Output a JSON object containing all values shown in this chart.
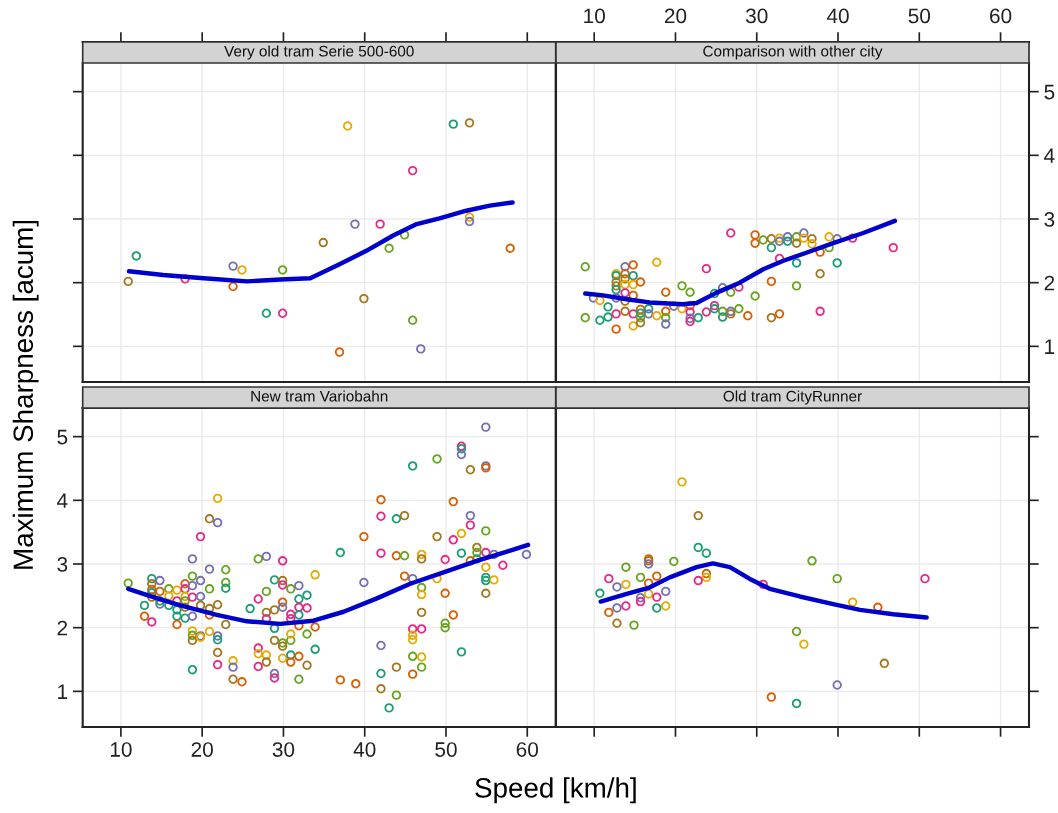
{
  "chart_data": [
    {
      "type": "scatter",
      "title": "Very old tram Serie 500-600",
      "xlabel": "Speed [km/h]",
      "ylabel": "Maximum Sharpness [acum]",
      "xlim": [
        5.3,
        63.5
      ],
      "ylim": [
        0.44,
        5.45
      ],
      "xticks": [
        10,
        20,
        30,
        40,
        50,
        60
      ],
      "yticks": [
        1,
        2,
        3,
        4,
        5
      ],
      "grid": true,
      "tick_labels": false,
      "series": [
        {
          "marker": "circle",
          "x": [
            11.9,
            10.9,
            17.9,
            23.8,
            24.9,
            23.8,
            29.9,
            27.9,
            29.9,
            34.9,
            37.9,
            36.9,
            38.8,
            39.9,
            41.9,
            43.0,
            44.9,
            45.9,
            45.9,
            46.9,
            50.9,
            52.9,
            52.9,
            52.9,
            57.9
          ],
          "values": [
            2.42,
            2.02,
            2.06,
            2.26,
            2.2,
            1.94,
            2.2,
            1.52,
            1.52,
            2.63,
            4.46,
            0.91,
            2.92,
            1.75,
            2.92,
            2.54,
            2.75,
            3.76,
            1.41,
            0.96,
            4.49,
            4.51,
            3.03,
            2.96,
            2.54
          ],
          "colors": [
            "#1b9e77",
            "#a6761d",
            "#e7298a",
            "#7570b3",
            "#e6ab02",
            "#d95f02",
            "#66a61e",
            "#1b9e77",
            "#e7298a",
            "#a6761d",
            "#e6ab02",
            "#d95f02",
            "#7570b3",
            "#a6761d",
            "#e7298a",
            "#66a61e",
            "#66a61e",
            "#e7298a",
            "#66a61e",
            "#7570b3",
            "#1b9e77",
            "#a6761d",
            "#e6ab02",
            "#7570b3",
            "#d95f02"
          ]
        },
        {
          "type": "line",
          "color": "#0000cc",
          "x": [
            11,
            15.2,
            20.2,
            25.5,
            29.6,
            33.3,
            36.9,
            40.2,
            43.5,
            46.4,
            49.2,
            52.5,
            55.4,
            58.2
          ],
          "values": [
            2.18,
            2.12,
            2.07,
            2.02,
            2.05,
            2.07,
            2.29,
            2.5,
            2.74,
            2.92,
            3.01,
            3.13,
            3.21,
            3.26
          ]
        }
      ]
    },
    {
      "type": "scatter",
      "title": "Comparison with other city",
      "xlim": [
        5.3,
        63.5
      ],
      "ylim": [
        0.44,
        5.45
      ],
      "xticks": [
        10,
        20,
        30,
        40,
        50,
        60
      ],
      "yticks": [
        1,
        2,
        3,
        4,
        5
      ],
      "grid": true,
      "series": [
        {
          "marker": "circle",
          "x": [
            8.9,
            8.9,
            9.9,
            10.7,
            10.7,
            11.7,
            11.7,
            12.7,
            12.7,
            12.7,
            12.7,
            12.7,
            12.7,
            12.7,
            12.7,
            13.8,
            13.8,
            13.8,
            13.8,
            13.8,
            13.8,
            13.8,
            14.8,
            14.8,
            14.8,
            14.8,
            14.8,
            14.8,
            15.7,
            15.7,
            15.7,
            15.7,
            15.7,
            16.7,
            16.7,
            17.7,
            17.7,
            18.8,
            18.8,
            18.8,
            18.8,
            19.8,
            20.8,
            20.8,
            21.8,
            21.8,
            21.8,
            21.8,
            21.8,
            22.8,
            23.8,
            23.8,
            24.8,
            24.8,
            24.8,
            25.8,
            25.8,
            25.8,
            26.8,
            26.8,
            26.8,
            26.8,
            27.8,
            27.8,
            28.9,
            29.8,
            29.8,
            29.8,
            30.8,
            31.8,
            31.8,
            31.8,
            31.8,
            32.8,
            32.8,
            32.8,
            32.8,
            33.8,
            33.8,
            34.9,
            34.9,
            34.9,
            34.9,
            35.8,
            35.8,
            36.8,
            36.8,
            37.8,
            37.8,
            37.8,
            38.9,
            38.9,
            39.9,
            39.9,
            41.8,
            46.8
          ],
          "values": [
            2.25,
            1.45,
            1.76,
            1.72,
            1.41,
            1.62,
            1.46,
            1.51,
            1.27,
            2.14,
            2.11,
            2.01,
            1.95,
            1.89,
            1.76,
            2.25,
            2.14,
            2.06,
            1.97,
            1.84,
            1.71,
            1.55,
            2.28,
            2.11,
            1.97,
            1.8,
            1.51,
            1.32,
            2.01,
            1.58,
            1.52,
            1.45,
            1.37,
            1.59,
            1.51,
            1.48,
            2.32,
            1.85,
            1.55,
            1.45,
            1.35,
            1.63,
            1.59,
            1.95,
            1.85,
            1.64,
            1.54,
            1.44,
            1.39,
            1.45,
            2.22,
            1.54,
            1.83,
            1.64,
            1.59,
            1.92,
            1.55,
            1.46,
            2.78,
            1.85,
            1.55,
            1.51,
            1.93,
            1.59,
            1.48,
            2.75,
            2.62,
            1.79,
            2.67,
            2.69,
            2.55,
            2.02,
            1.45,
            2.7,
            2.65,
            2.38,
            1.51,
            2.72,
            2.65,
            2.72,
            2.62,
            2.31,
            1.95,
            2.78,
            2.7,
            2.69,
            2.61,
            2.48,
            2.14,
            1.55,
            2.72,
            2.55,
            2.69,
            2.31,
            2.7,
            2.55
          ],
          "colors": [
            "#66a61e",
            "#66a61e",
            "#7570b3",
            "#e6ab02",
            "#1b9e77",
            "#1b9e77",
            "#1b9e77",
            "#e7298a",
            "#d95f02",
            "#e6ab02",
            "#1b9e77",
            "#a6761d",
            "#a6761d",
            "#1b9e77",
            "#7570b3",
            "#7570b3",
            "#d95f02",
            "#a6761d",
            "#e6ab02",
            "#e7298a",
            "#a6761d",
            "#a6761d",
            "#d95f02",
            "#1b9e77",
            "#e6ab02",
            "#d95f02",
            "#e7298a",
            "#e6ab02",
            "#d95f02",
            "#d95f02",
            "#1b9e77",
            "#66a61e",
            "#a6761d",
            "#1b9e77",
            "#7570b3",
            "#e6ab02",
            "#e6ab02",
            "#d95f02",
            "#d95f02",
            "#66a61e",
            "#7570b3",
            "#7570b3",
            "#e6ab02",
            "#66a61e",
            "#66a61e",
            "#d95f02",
            "#e7298a",
            "#7570b3",
            "#e7298a",
            "#1b9e77",
            "#e7298a",
            "#e7298a",
            "#1b9e77",
            "#e7298a",
            "#1b9e77",
            "#7570b3",
            "#66a61e",
            "#1b9e77",
            "#e7298a",
            "#66a61e",
            "#7570b3",
            "#a6761d",
            "#e7298a",
            "#66a61e",
            "#d95f02",
            "#d95f02",
            "#d95f02",
            "#66a61e",
            "#66a61e",
            "#a6761d",
            "#1b9e77",
            "#d95f02",
            "#a6761d",
            "#e6ab02",
            "#7570b3",
            "#e7298a",
            "#d95f02",
            "#7570b3",
            "#1b9e77",
            "#66a61e",
            "#a6761d",
            "#1b9e77",
            "#66a61e",
            "#7570b3",
            "#e6ab02",
            "#a6761d",
            "#e6ab02",
            "#d95f02",
            "#a6761d",
            "#e7298a",
            "#e6ab02",
            "#66a61e",
            "#7570b3",
            "#1b9e77",
            "#e7298a",
            "#e7298a"
          ]
        },
        {
          "type": "line",
          "color": "#0000cc",
          "x": [
            8.9,
            11.1,
            14.0,
            16.8,
            20.9,
            22.6,
            25.0,
            27.9,
            30.8,
            33.2,
            36.1,
            39.4,
            43.1,
            47.0
          ],
          "values": [
            1.83,
            1.8,
            1.74,
            1.69,
            1.66,
            1.68,
            1.84,
            2.0,
            2.21,
            2.34,
            2.47,
            2.62,
            2.78,
            2.97
          ]
        }
      ]
    },
    {
      "type": "scatter",
      "title": "New tram Variobahn",
      "xlim": [
        5.3,
        63.5
      ],
      "ylim": [
        0.44,
        5.45
      ],
      "xticks": [
        10,
        20,
        30,
        40,
        50,
        60
      ],
      "yticks": [
        1,
        2,
        3,
        4,
        5
      ],
      "grid": true,
      "series": [
        {
          "marker": "circle",
          "x": [
            10.9,
            12.9,
            12.9,
            13.8,
            13.8,
            13.8,
            13.8,
            13.8,
            13.8,
            14.8,
            14.8,
            14.8,
            14.8,
            15.9,
            15.9,
            15.9,
            16.9,
            16.9,
            16.9,
            16.9,
            16.9,
            17.9,
            17.9,
            17.9,
            17.9,
            17.9,
            17.9,
            18.8,
            18.8,
            18.8,
            18.8,
            18.8,
            18.8,
            18.8,
            18.8,
            18.8,
            19.8,
            19.8,
            19.8,
            19.8,
            19.8,
            19.8,
            20.9,
            20.9,
            20.9,
            20.9,
            20.9,
            20.9,
            21.9,
            21.9,
            21.9,
            21.9,
            21.9,
            21.9,
            21.9,
            22.9,
            22.9,
            22.9,
            22.9,
            23.8,
            23.8,
            23.8,
            24.9,
            25.9,
            26.9,
            27.9,
            26.9,
            26.9,
            26.9,
            26.9,
            27.9,
            27.9,
            27.9,
            27.9,
            27.9,
            28.9,
            28.9,
            28.9,
            28.9,
            28.9,
            29.9,
            29.9,
            29.9,
            29.9,
            29.9,
            28.9,
            29.9,
            29.9,
            29.9,
            30.9,
            30.9,
            30.9,
            30.9,
            30.9,
            30.9,
            30.9,
            31.9,
            31.9,
            31.9,
            31.9,
            31.9,
            31.9,
            31.9,
            32.9,
            32.9,
            32.9,
            32.9,
            33.9,
            33.9,
            33.9,
            37.0,
            37.0,
            38.9,
            39.9,
            39.9,
            42.0,
            42.0,
            42.0,
            42.0,
            42.0,
            42.0,
            43.0,
            43.9,
            43.9,
            43.9,
            43.9,
            44.9,
            44.9,
            44.9,
            45.9,
            45.9,
            45.9,
            45.9,
            45.9,
            45.9,
            45.9,
            47.0,
            47.0,
            47.0,
            47.0,
            47.0,
            47.0,
            47.0,
            47.0,
            48.9,
            48.9,
            48.9,
            49.9,
            49.9,
            49.9,
            49.9,
            50.9,
            50.9,
            50.9,
            51.9,
            51.9,
            51.9,
            51.9,
            51.9,
            51.9,
            53.0,
            53.0,
            53.0,
            53.8,
            53.8,
            53.8,
            53.0,
            54.9,
            54.9,
            54.9,
            54.9,
            54.9,
            54.9,
            54.9,
            54.9,
            54.9,
            55.9,
            55.9,
            57.0,
            59.9
          ],
          "values": [
            2.7,
            2.35,
            2.18,
            2.09,
            2.77,
            2.69,
            2.6,
            2.55,
            2.48,
            2.74,
            2.57,
            2.37,
            2.42,
            2.61,
            2.5,
            2.35,
            2.59,
            2.42,
            2.28,
            2.18,
            2.05,
            2.69,
            2.61,
            2.49,
            2.42,
            2.32,
            2.15,
            3.08,
            2.81,
            2.66,
            2.48,
            2.18,
            1.95,
            1.88,
            1.8,
            1.34,
            3.43,
            2.74,
            2.49,
            2.35,
            1.87,
            1.85,
            3.71,
            2.92,
            2.61,
            2.3,
            2.2,
            1.94,
            4.03,
            3.65,
            2.36,
            1.87,
            1.81,
            1.61,
            1.42,
            2.91,
            2.71,
            2.62,
            2.05,
            1.48,
            1.38,
            1.19,
            1.15,
            2.3,
            3.08,
            3.12,
            2.45,
            1.68,
            1.59,
            1.39,
            2.57,
            2.24,
            2.14,
            1.57,
            1.46,
            2.75,
            2.28,
            1.8,
            1.28,
            1.21,
            3.05,
            2.74,
            2.67,
            2.4,
            2.32,
            1.99,
            1.76,
            1.71,
            1.52,
            2.61,
            2.21,
            2.14,
            1.8,
            1.9,
            1.57,
            1.46,
            1.55,
            2.66,
            2.45,
            2.32,
            2.2,
            2.03,
            1.19,
            2.51,
            2.31,
            1.9,
            1.41,
            1.66,
            2.83,
            2.01,
            3.18,
            1.18,
            1.12,
            3.43,
            2.71,
            4.01,
            3.75,
            3.17,
            1.72,
            1.28,
            1.04,
            0.74,
            3.71,
            3.13,
            1.38,
            0.94,
            3.76,
            3.13,
            2.81,
            4.54,
            2.77,
            1.98,
            1.88,
            1.81,
            1.55,
            1.27,
            3.15,
            3.08,
            2.63,
            2.52,
            2.24,
            1.98,
            1.54,
            1.38,
            4.65,
            3.43,
            2.77,
            2.54,
            3.07,
            2.07,
            2.0,
            3.98,
            3.38,
            2.2,
            1.62,
            4.85,
            4.81,
            4.72,
            3.48,
            3.17,
            4.48,
            3.76,
            3.61,
            3.26,
            3.18,
            3.08,
            3.05,
            5.15,
            4.54,
            4.51,
            3.52,
            3.18,
            2.95,
            2.79,
            2.74,
            2.54,
            3.15,
            2.75,
            2.98,
            3.15
          ],
          "colors": [
            "#66a61e",
            "#1b9e77",
            "#d95f02",
            "#e7298a",
            "#1b9e77",
            "#a6761d",
            "#d95f02",
            "#1b9e77",
            "#a6761d",
            "#7570b3",
            "#d95f02",
            "#7570b3",
            "#1b9e77",
            "#66a61e",
            "#e6ab02",
            "#1b9e77",
            "#e6ab02",
            "#e7298a",
            "#1b9e77",
            "#1b9e77",
            "#d95f02",
            "#d95f02",
            "#e7298a",
            "#e6ab02",
            "#66a61e",
            "#a6761d",
            "#1b9e77",
            "#7570b3",
            "#66a61e",
            "#7570b3",
            "#e7298a",
            "#7570b3",
            "#e6ab02",
            "#66a61e",
            "#a6761d",
            "#1b9e77",
            "#e7298a",
            "#7570b3",
            "#7570b3",
            "#a6761d",
            "#7570b3",
            "#e6ab02",
            "#a6761d",
            "#7570b3",
            "#66a61e",
            "#a6761d",
            "#d95f02",
            "#e6ab02",
            "#e6ab02",
            "#7570b3",
            "#a6761d",
            "#7570b3",
            "#1b9e77",
            "#a6761d",
            "#e7298a",
            "#66a61e",
            "#66a61e",
            "#1b9e77",
            "#a6761d",
            "#e6ab02",
            "#7570b3",
            "#a6761d",
            "#d95f02",
            "#1b9e77",
            "#66a61e",
            "#7570b3",
            "#e7298a",
            "#e7298a",
            "#e6ab02",
            "#e7298a",
            "#66a61e",
            "#a6761d",
            "#e7298a",
            "#e6ab02",
            "#a6761d",
            "#1b9e77",
            "#a6761d",
            "#a6761d",
            "#7570b3",
            "#e7298a",
            "#e7298a",
            "#a6761d",
            "#e7298a",
            "#d95f02",
            "#7570b3",
            "#1b9e77",
            "#66a61e",
            "#a6761d",
            "#e6ab02",
            "#66a61e",
            "#e7298a",
            "#e7298a",
            "#66a61e",
            "#e6ab02",
            "#1b9e77",
            "#d95f02",
            "#d95f02",
            "#7570b3",
            "#1b9e77",
            "#e7298a",
            "#1b9e77",
            "#d95f02",
            "#66a61e",
            "#1b9e77",
            "#e7298a",
            "#66a61e",
            "#a6761d",
            "#1b9e77",
            "#e6ab02",
            "#d95f02",
            "#1b9e77",
            "#d95f02",
            "#d95f02",
            "#d95f02",
            "#7570b3",
            "#d95f02",
            "#e7298a",
            "#e7298a",
            "#7570b3",
            "#1b9e77",
            "#a6761d",
            "#1b9e77",
            "#1b9e77",
            "#d95f02",
            "#a6761d",
            "#66a61e",
            "#a6761d",
            "#66a61e",
            "#d95f02",
            "#1b9e77",
            "#7570b3",
            "#e7298a",
            "#e6ab02",
            "#e6ab02",
            "#66a61e",
            "#d95f02",
            "#e6ab02",
            "#a6761d",
            "#66a61e",
            "#e6ab02",
            "#a6761d",
            "#e7298a",
            "#e6ab02",
            "#66a61e",
            "#66a61e",
            "#a6761d",
            "#e6ab02",
            "#d95f02",
            "#e7298a",
            "#66a61e",
            "#66a61e",
            "#d95f02",
            "#e7298a",
            "#d95f02",
            "#1b9e77",
            "#e7298a",
            "#1b9e77",
            "#7570b3",
            "#e6ab02",
            "#1b9e77",
            "#a6761d",
            "#7570b3",
            "#e7298a",
            "#a6761d",
            "#66a61e",
            "#1b9e77",
            "#d95f02",
            "#7570b3",
            "#7570b3",
            "#d95f02",
            "#66a61e",
            "#e7298a",
            "#e6ab02",
            "#1b9e77",
            "#1b9e77",
            "#a6761d",
            "#7570b3",
            "#e6ab02",
            "#e7298a",
            "#7570b3"
          ]
        },
        {
          "type": "line",
          "color": "#0000cc",
          "x": [
            10.9,
            14.0,
            17.3,
            21.8,
            25.5,
            29.6,
            33.7,
            37.4,
            41.5,
            45.6,
            49.7,
            53.8,
            57.9,
            60.1
          ],
          "values": [
            2.61,
            2.48,
            2.35,
            2.2,
            2.1,
            2.06,
            2.11,
            2.25,
            2.46,
            2.69,
            2.87,
            3.05,
            3.21,
            3.3
          ]
        }
      ]
    },
    {
      "type": "scatter",
      "title": "Old tram CityRunner",
      "xlim": [
        5.3,
        63.5
      ],
      "ylim": [
        0.44,
        5.45
      ],
      "xticks": [
        10,
        20,
        30,
        40,
        50,
        60
      ],
      "yticks": [
        1,
        2,
        3,
        4,
        5
      ],
      "grid": true,
      "tick_labels": false,
      "series": [
        {
          "marker": "circle",
          "x": [
            10.7,
            11.8,
            11.8,
            12.8,
            12.8,
            12.8,
            13.9,
            13.9,
            13.9,
            14.9,
            15.7,
            15.7,
            15.7,
            16.7,
            16.7,
            16.7,
            16.7,
            16.7,
            17.7,
            17.7,
            17.7,
            18.8,
            18.8,
            19.8,
            20.8,
            22.8,
            22.8,
            23.8,
            23.8,
            23.8,
            22.8,
            30.8,
            31.8,
            34.9,
            34.9,
            35.8,
            36.8,
            39.9,
            39.9,
            41.8,
            44.9,
            45.7,
            50.7
          ],
          "values": [
            2.54,
            2.77,
            2.24,
            2.64,
            2.31,
            2.07,
            2.95,
            2.68,
            2.34,
            2.04,
            2.79,
            2.47,
            2.41,
            3.08,
            3.05,
            3.0,
            2.7,
            2.53,
            2.81,
            2.48,
            2.31,
            2.57,
            2.34,
            3.04,
            4.29,
            3.76,
            3.26,
            3.17,
            2.85,
            2.79,
            2.74,
            2.68,
            0.91,
            1.94,
            0.81,
            1.74,
            3.05,
            2.77,
            1.1,
            2.4,
            2.32,
            1.44,
            2.77
          ],
          "colors": [
            "#1b9e77",
            "#e7298a",
            "#d95f02",
            "#7570b3",
            "#7570b3",
            "#a6761d",
            "#66a61e",
            "#e6ab02",
            "#e7298a",
            "#66a61e",
            "#66a61e",
            "#7570b3",
            "#e7298a",
            "#d95f02",
            "#a6761d",
            "#7570b3",
            "#d95f02",
            "#e6ab02",
            "#d95f02",
            "#e7298a",
            "#1b9e77",
            "#7570b3",
            "#e6ab02",
            "#66a61e",
            "#e6ab02",
            "#a6761d",
            "#1b9e77",
            "#1b9e77",
            "#d95f02",
            "#e6ab02",
            "#e7298a",
            "#e7298a",
            "#d95f02",
            "#66a61e",
            "#1b9e77",
            "#e6ab02",
            "#66a61e",
            "#66a61e",
            "#7570b3",
            "#e6ab02",
            "#d95f02",
            "#a6761d",
            "#e7298a"
          ]
        },
        {
          "type": "line",
          "color": "#0000cc",
          "x": [
            10.8,
            14.0,
            16.8,
            19.3,
            22.6,
            24.6,
            26.7,
            29.1,
            31.6,
            35.3,
            39.4,
            42.7,
            46.8,
            50.9
          ],
          "values": [
            2.41,
            2.53,
            2.63,
            2.79,
            2.95,
            3.01,
            2.95,
            2.77,
            2.61,
            2.49,
            2.37,
            2.28,
            2.21,
            2.16
          ]
        }
      ]
    }
  ]
}
